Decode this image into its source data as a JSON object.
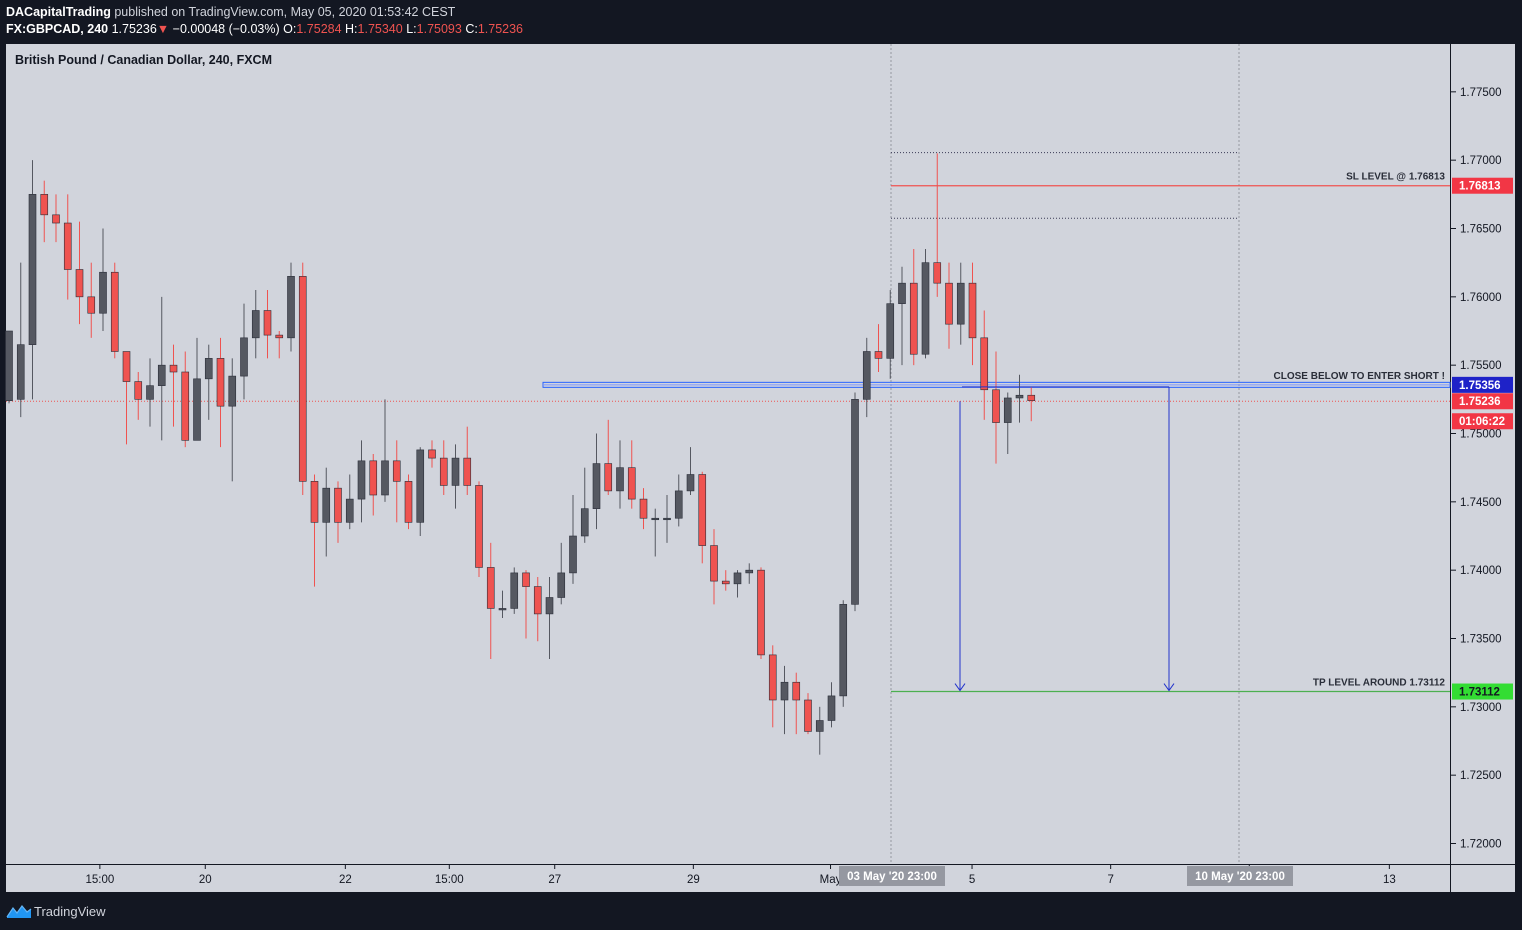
{
  "header": {
    "author": "DACapitalTrading",
    "published_text": "published on TradingView.com, May 05, 2020 01:53:42 CEST",
    "symbol": "FX:GBPCAD, 240",
    "last": "1.75236",
    "change_arrow": "▼",
    "change": "−0.00048 (−0.03%)",
    "open_label": "O:",
    "open": "1.75284",
    "high_label": "H:",
    "high": "1.75340",
    "low_label": "L:",
    "low": "1.75093",
    "close_label": "C:",
    "close": "1.75236"
  },
  "chart_title": "British Pound / Canadian Dollar, 240, FXCM",
  "footer": {
    "brand": "TradingView",
    "logo_icon": "tradingview-logo-icon"
  },
  "colors": {
    "up": "#555861",
    "down": "#ef5350",
    "plot_bg": "#d1d4dc",
    "sl": "#ef5350",
    "tp": "#4caf50",
    "entry": "#2962ff",
    "arrows": "#2233cc"
  },
  "chart_data": {
    "type": "candlestick",
    "ylim": [
      1.7185,
      1.7785
    ],
    "y_ticks": [
      "1.77500",
      "1.77000",
      "1.76500",
      "1.76000",
      "1.75500",
      "1.75000",
      "1.74500",
      "1.74000",
      "1.73500",
      "1.73000",
      "1.72500",
      "1.72000"
    ],
    "x_ticks": [
      "15:00",
      "20",
      "22",
      "15:00",
      "27",
      "29",
      "May",
      "5",
      "7",
      "11",
      "13"
    ],
    "candles": [
      [
        1.7524,
        1.7575,
        1.7525,
        1.7522
      ],
      [
        1.7525,
        1.7565,
        1.7625,
        1.7512
      ],
      [
        1.7565,
        1.7675,
        1.77,
        1.7525
      ],
      [
        1.7675,
        1.766,
        1.7685,
        1.764
      ],
      [
        1.766,
        1.7654,
        1.7675,
        1.764
      ],
      [
        1.7654,
        1.762,
        1.7675,
        1.7598
      ],
      [
        1.762,
        1.76,
        1.7655,
        1.758
      ],
      [
        1.76,
        1.7588,
        1.7625,
        1.757
      ],
      [
        1.7588,
        1.7618,
        1.765,
        1.7575
      ],
      [
        1.7618,
        1.756,
        1.7625,
        1.7555
      ],
      [
        1.756,
        1.7538,
        1.756,
        1.7492
      ],
      [
        1.7538,
        1.7525,
        1.7545,
        1.751
      ],
      [
        1.7525,
        1.7535,
        1.7555,
        1.7505
      ],
      [
        1.7535,
        1.755,
        1.76,
        1.7495
      ],
      [
        1.755,
        1.7545,
        1.7565,
        1.7505
      ],
      [
        1.7545,
        1.7495,
        1.756,
        1.749
      ],
      [
        1.7495,
        1.754,
        1.757,
        1.752
      ],
      [
        1.754,
        1.7555,
        1.7565,
        1.751
      ],
      [
        1.7555,
        1.752,
        1.757,
        1.749
      ],
      [
        1.752,
        1.7542,
        1.7555,
        1.7465
      ],
      [
        1.7542,
        1.757,
        1.7595,
        1.7525
      ],
      [
        1.757,
        1.759,
        1.7605,
        1.7555
      ],
      [
        1.759,
        1.7572,
        1.7605,
        1.7555
      ],
      [
        1.7572,
        1.757,
        1.7575,
        1.7555
      ],
      [
        1.757,
        1.7615,
        1.7625,
        1.756
      ],
      [
        1.7615,
        1.7465,
        1.7625,
        1.7455
      ],
      [
        1.7465,
        1.7435,
        1.747,
        1.7388
      ],
      [
        1.7435,
        1.746,
        1.7475,
        1.741
      ],
      [
        1.746,
        1.7435,
        1.7465,
        1.742
      ],
      [
        1.7435,
        1.7452,
        1.747,
        1.743
      ],
      [
        1.7452,
        1.748,
        1.7495,
        1.7435
      ],
      [
        1.748,
        1.7455,
        1.7485,
        1.744
      ],
      [
        1.7455,
        1.748,
        1.7525,
        1.745
      ],
      [
        1.748,
        1.7465,
        1.7495,
        1.7435
      ],
      [
        1.7465,
        1.7435,
        1.747,
        1.743
      ],
      [
        1.7435,
        1.7488,
        1.749,
        1.7425
      ],
      [
        1.7488,
        1.7482,
        1.7495,
        1.7475
      ],
      [
        1.7482,
        1.7462,
        1.7495,
        1.7455
      ],
      [
        1.7462,
        1.7482,
        1.7492,
        1.7445
      ],
      [
        1.7482,
        1.7462,
        1.7505,
        1.7455
      ],
      [
        1.7462,
        1.7402,
        1.7465,
        1.7395
      ],
      [
        1.7402,
        1.7372,
        1.742,
        1.7335
      ],
      [
        1.7372,
        1.7372,
        1.7385,
        1.7365
      ],
      [
        1.7372,
        1.7398,
        1.7402,
        1.7368
      ],
      [
        1.7398,
        1.7388,
        1.74,
        1.735
      ],
      [
        1.7388,
        1.7368,
        1.7395,
        1.7348
      ],
      [
        1.7368,
        1.738,
        1.7395,
        1.7335
      ],
      [
        1.738,
        1.7398,
        1.742,
        1.7375
      ],
      [
        1.7398,
        1.7425,
        1.7455,
        1.739
      ],
      [
        1.7425,
        1.7445,
        1.7475,
        1.742
      ],
      [
        1.7445,
        1.7478,
        1.75,
        1.743
      ],
      [
        1.7478,
        1.7458,
        1.751,
        1.7455
      ],
      [
        1.7458,
        1.7475,
        1.7495,
        1.7445
      ],
      [
        1.7475,
        1.7452,
        1.7495,
        1.7445
      ],
      [
        1.7452,
        1.7438,
        1.746,
        1.743
      ],
      [
        1.7438,
        1.7438,
        1.7445,
        1.741
      ],
      [
        1.7438,
        1.7438,
        1.7455,
        1.742
      ],
      [
        1.7438,
        1.7458,
        1.747,
        1.7432
      ],
      [
        1.7458,
        1.747,
        1.749,
        1.7455
      ],
      [
        1.747,
        1.7418,
        1.7472,
        1.7405
      ],
      [
        1.7418,
        1.7392,
        1.743,
        1.7375
      ],
      [
        1.7392,
        1.739,
        1.74,
        1.7385
      ],
      [
        1.739,
        1.7398,
        1.74,
        1.738
      ],
      [
        1.7398,
        1.74,
        1.7405,
        1.739
      ],
      [
        1.74,
        1.7338,
        1.7402,
        1.7335
      ],
      [
        1.7338,
        1.7305,
        1.7345,
        1.7285
      ],
      [
        1.7305,
        1.7318,
        1.733,
        1.728
      ],
      [
        1.7318,
        1.7305,
        1.7325,
        1.728
      ],
      [
        1.7305,
        1.7282,
        1.731,
        1.728
      ],
      [
        1.7282,
        1.729,
        1.73,
        1.7265
      ],
      [
        1.729,
        1.7308,
        1.7318,
        1.7285
      ],
      [
        1.7308,
        1.7375,
        1.7378,
        1.73
      ],
      [
        1.7375,
        1.7525,
        1.753,
        1.737
      ],
      [
        1.7525,
        1.756,
        1.757,
        1.7512
      ],
      [
        1.756,
        1.7555,
        1.758,
        1.7545
      ],
      [
        1.7555,
        1.7595,
        1.7605,
        1.754
      ],
      [
        1.7595,
        1.761,
        1.7622,
        1.755
      ],
      [
        1.761,
        1.7558,
        1.7635,
        1.755
      ],
      [
        1.7558,
        1.7625,
        1.7635,
        1.7555
      ],
      [
        1.7625,
        1.761,
        1.7705,
        1.76
      ],
      [
        1.761,
        1.758,
        1.7625,
        1.7562
      ],
      [
        1.758,
        1.761,
        1.7625,
        1.7565
      ],
      [
        1.761,
        1.757,
        1.7625,
        1.755
      ],
      [
        1.757,
        1.7532,
        1.759,
        1.751
      ],
      [
        1.7532,
        1.7508,
        1.756,
        1.7478
      ],
      [
        1.7508,
        1.7526,
        1.753,
        1.7485
      ],
      [
        1.7526,
        1.7528,
        1.7543,
        1.7508
      ],
      [
        1.7528,
        1.7524,
        1.7534,
        1.7509
      ]
    ],
    "levels": {
      "sl": {
        "value": 1.76813,
        "label": "SL LEVEL @ 1.76813",
        "tag": "1.76813"
      },
      "tp": {
        "value": 1.73112,
        "label": "TP LEVEL AROUND 1.73112",
        "tag": "1.73112"
      },
      "entry": {
        "value": 1.75356,
        "label": "CLOSE BELOW TO ENTER SHORT !",
        "tag": "1.75356"
      },
      "current": {
        "value": 1.75236,
        "tag": "1.75236",
        "countdown": "01:06:22"
      },
      "range_top": 1.77055,
      "range_bottom": 1.76575
    },
    "time_tags": [
      "03 May '20",
      "23:00",
      "10 May '20",
      "23:00"
    ]
  }
}
